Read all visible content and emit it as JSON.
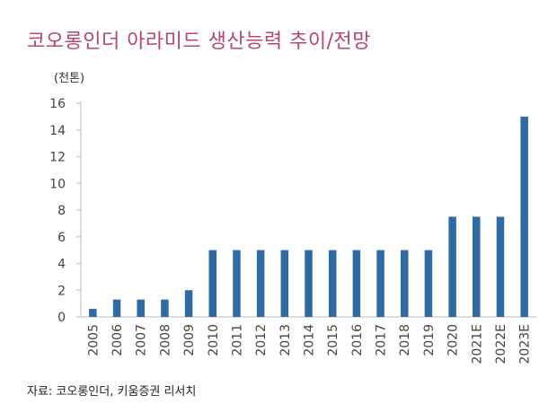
{
  "title": "코오롱인더 아라미드 생산능력 추이/전망",
  "source": "자료: 코오롱인더, 키움증권 리서치",
  "chart_data": {
    "type": "bar",
    "title": "코오롱인더 아라미드 생산능력 추이/전망",
    "ylabel": "(천톤)",
    "xlabel": "",
    "ylim": [
      0,
      16
    ],
    "yticks": [
      0,
      2,
      4,
      6,
      8,
      10,
      12,
      14,
      16
    ],
    "categories": [
      "2005",
      "2006",
      "2007",
      "2008",
      "2009",
      "2010",
      "2011",
      "2012",
      "2013",
      "2014",
      "2015",
      "2016",
      "2017",
      "2018",
      "2019",
      "2020",
      "2021E",
      "2022E",
      "2023E"
    ],
    "values": [
      0.6,
      1.3,
      1.3,
      1.3,
      2,
      5,
      5,
      5,
      5,
      5,
      5,
      5,
      5,
      5,
      5,
      7.5,
      7.5,
      7.5,
      15
    ],
    "bar_color": "#2e6aa6",
    "grid": false,
    "legend": "none"
  }
}
